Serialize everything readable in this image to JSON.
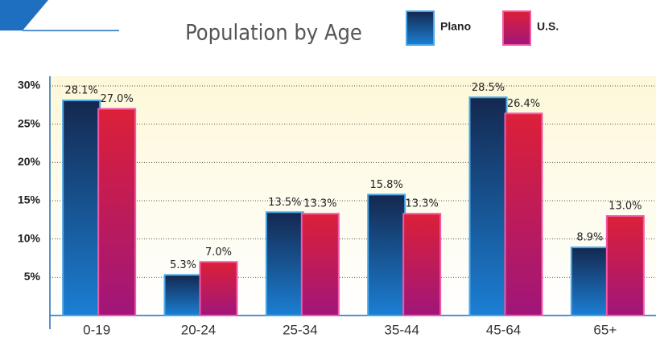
{
  "chart_data": {
    "type": "bar",
    "title": "Population by Age",
    "categories": [
      "0-19",
      "20-24",
      "25-34",
      "35-44",
      "45-64",
      "65+"
    ],
    "series": [
      {
        "name": "Plano",
        "color": "#1b7fd4",
        "values": [
          28.1,
          5.3,
          13.5,
          15.8,
          28.5,
          8.9
        ],
        "value_labels": [
          "28.1%",
          "5.3%",
          "13.5%",
          "15.8%",
          "28.5%",
          "8.9%"
        ]
      },
      {
        "name": "U.S.",
        "color": "#dc2038",
        "values": [
          27.0,
          7.0,
          13.3,
          13.3,
          26.4,
          13.0
        ],
        "value_labels": [
          "27.0%",
          "7.0%",
          "13.3%",
          "13.3%",
          "26.4%",
          "13.0%"
        ]
      }
    ],
    "ylim": [
      0,
      30
    ],
    "yticks": [
      {
        "value": 5,
        "label": "5%"
      },
      {
        "value": 10,
        "label": "10%"
      },
      {
        "value": 15,
        "label": "15%"
      },
      {
        "value": 20,
        "label": "20%"
      },
      {
        "value": 25,
        "label": "25%"
      },
      {
        "value": 30,
        "label": "30%"
      }
    ],
    "grid": true
  }
}
